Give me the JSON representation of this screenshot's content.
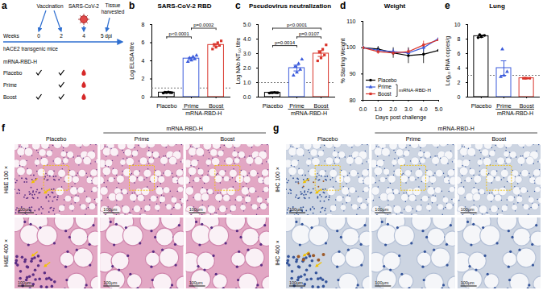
{
  "chart_data": [
    {
      "panel": "b",
      "type": "bar",
      "title": "SARS-CoV-2 RBD",
      "y_label": "Log ELISA titre",
      "ylim": [
        0,
        8
      ],
      "yticks": [
        0,
        2,
        4,
        6,
        8
      ],
      "lod": 1.0,
      "group_label": {
        "label": "mRNA-RBD-H",
        "members": [
          "Prime",
          "Boost"
        ]
      },
      "groups": [
        {
          "name": "Placebo",
          "color": "#000000",
          "marker": "circle",
          "value": 0.5,
          "error": 0.03,
          "points": [
            0.45,
            0.5,
            0.5,
            0.52,
            0.55,
            0.48
          ]
        },
        {
          "name": "Prime",
          "color": "#3b5bdb",
          "marker": "triangle",
          "value": 4.25,
          "error": 0.12,
          "points": [
            3.9,
            4.05,
            4.2,
            4.3,
            4.45,
            4.6
          ]
        },
        {
          "name": "Boost",
          "color": "#d9342b",
          "marker": "square",
          "value": 5.75,
          "error": 0.13,
          "points": [
            5.3,
            5.5,
            5.7,
            5.8,
            6.0,
            6.2
          ]
        }
      ],
      "comparisons": [
        {
          "pair": [
            "Placebo",
            "Prime"
          ],
          "label": "p<0.0001"
        },
        {
          "pair": [
            "Prime",
            "Boost"
          ],
          "label": "p=0.0002"
        }
      ]
    },
    {
      "panel": "c",
      "type": "bar",
      "title": "Pseudovirus neutralization",
      "y_label": "Log NAb NT₅₀ titre",
      "ylim": [
        0,
        5
      ],
      "yticks": [
        0,
        1,
        2,
        3,
        4,
        5
      ],
      "lod": 1.0,
      "group_label": {
        "label": "mRNA-RBD-H",
        "members": [
          "Prime",
          "Boost"
        ]
      },
      "groups": [
        {
          "name": "Placebo",
          "color": "#000000",
          "marker": "circle",
          "value": 0.3,
          "error": 0.02,
          "points": [
            0.28,
            0.3,
            0.3,
            0.3,
            0.32,
            0.3
          ]
        },
        {
          "name": "Prime",
          "color": "#3b5bdb",
          "marker": "triangle",
          "value": 2.0,
          "error": 0.2,
          "points": [
            1.5,
            1.7,
            1.9,
            2.1,
            2.3,
            2.6
          ]
        },
        {
          "name": "Boost",
          "color": "#d9342b",
          "marker": "square",
          "value": 3.0,
          "error": 0.2,
          "points": [
            2.5,
            2.7,
            2.9,
            3.1,
            3.3,
            3.6
          ]
        }
      ],
      "comparisons": [
        {
          "pair": [
            "Placebo",
            "Prime"
          ],
          "label": "p=0.0014"
        },
        {
          "pair": [
            "Placebo",
            "Boost"
          ],
          "label": "p<0.0001"
        },
        {
          "pair": [
            "Prime",
            "Boost"
          ],
          "label": "p=0.0107"
        }
      ]
    },
    {
      "panel": "d",
      "type": "line",
      "title": "Weight",
      "x_label": "Days post challenge",
      "y_label": "% Starting Weight",
      "x": [
        0,
        1,
        2,
        3,
        4,
        5
      ],
      "xlim": [
        0,
        5
      ],
      "xticks": [
        0,
        1,
        2,
        3,
        4,
        5
      ],
      "ylim": [
        80,
        110
      ],
      "yticks": [
        80,
        90,
        100,
        110
      ],
      "legend": "bottom-left",
      "group_label": {
        "label": "mRNA-RBD-H",
        "members": [
          "Prime",
          "Boost"
        ]
      },
      "series": [
        {
          "name": "Placebo",
          "color": "#000000",
          "marker": "circle",
          "values": [
            100,
            99.5,
            98,
            97,
            97.5,
            99
          ],
          "errors": [
            0,
            1,
            2,
            3,
            3.5,
            3
          ]
        },
        {
          "name": "Prime",
          "color": "#3b5bdb",
          "marker": "triangle",
          "values": [
            100,
            99,
            98.5,
            98,
            100,
            103.5
          ],
          "errors": [
            0,
            1,
            1,
            1.5,
            1.5,
            1.5
          ]
        },
        {
          "name": "Boost",
          "color": "#d9342b",
          "marker": "square",
          "values": [
            100,
            98.5,
            98,
            98.5,
            101,
            103
          ],
          "errors": [
            0,
            1,
            1,
            1,
            1.5,
            1.5
          ]
        }
      ]
    },
    {
      "panel": "e",
      "type": "bar",
      "title": "Lung",
      "y_label": "Log₁₀ RNA copies/g",
      "ylim": [
        0,
        10
      ],
      "yticks": [
        0,
        2,
        4,
        6,
        8,
        10
      ],
      "lod": 3.0,
      "group_label": {
        "label": "mRNA-RBD-H",
        "members": [
          "Prime",
          "Boost"
        ]
      },
      "groups": [
        {
          "name": "Placebo",
          "color": "#000000",
          "marker": "circle",
          "value": 8.4,
          "error": 0.15,
          "points": [
            8.2,
            8.3,
            8.5,
            8.6
          ]
        },
        {
          "name": "Prime",
          "color": "#3b5bdb",
          "marker": "triangle",
          "value": 4.0,
          "error": 1.0,
          "points": [
            2.8,
            3.0,
            3.5,
            6.6
          ]
        },
        {
          "name": "Boost",
          "color": "#d9342b",
          "marker": "square",
          "value": 2.6,
          "error": 0.05,
          "points": [
            2.6,
            2.6,
            2.6,
            2.6
          ]
        }
      ]
    }
  ],
  "schematic": {
    "panel": "a",
    "weeks_label": "Weeks",
    "weeks": [
      0,
      2,
      4
    ],
    "challenge_end": "5 dpi",
    "vaccination": {
      "label": "Vaccination",
      "weeks": [
        0,
        2
      ]
    },
    "challenge": {
      "label": "SARS-CoV-2",
      "week": 4
    },
    "harvest": "Tissue harvested",
    "model": "hACE2 transgenic mice",
    "header": "mRNA-RBD-H",
    "rows": [
      {
        "name": "Placebo",
        "doses": [
          true,
          true
        ],
        "challenged": true
      },
      {
        "name": "Prime",
        "doses": [
          false,
          true
        ],
        "challenged": true
      },
      {
        "name": "Boost",
        "doses": [
          true,
          true
        ],
        "challenged": true
      }
    ]
  },
  "histology": [
    {
      "panel": "f",
      "header": "mRNA-RBD-H",
      "columns": [
        "Placebo",
        "Prime",
        "Boost"
      ],
      "rows": [
        "H&E 100 ×",
        "H&E 400 ×"
      ],
      "scale_bar": "100μm"
    },
    {
      "panel": "g",
      "header": "mRNA-RBD-H",
      "columns": [
        "Placebo",
        "Prime",
        "Boost"
      ],
      "rows": [
        "IHC 100 ×",
        "IHC 400 ×"
      ],
      "scale_bar": "100μm"
    }
  ]
}
